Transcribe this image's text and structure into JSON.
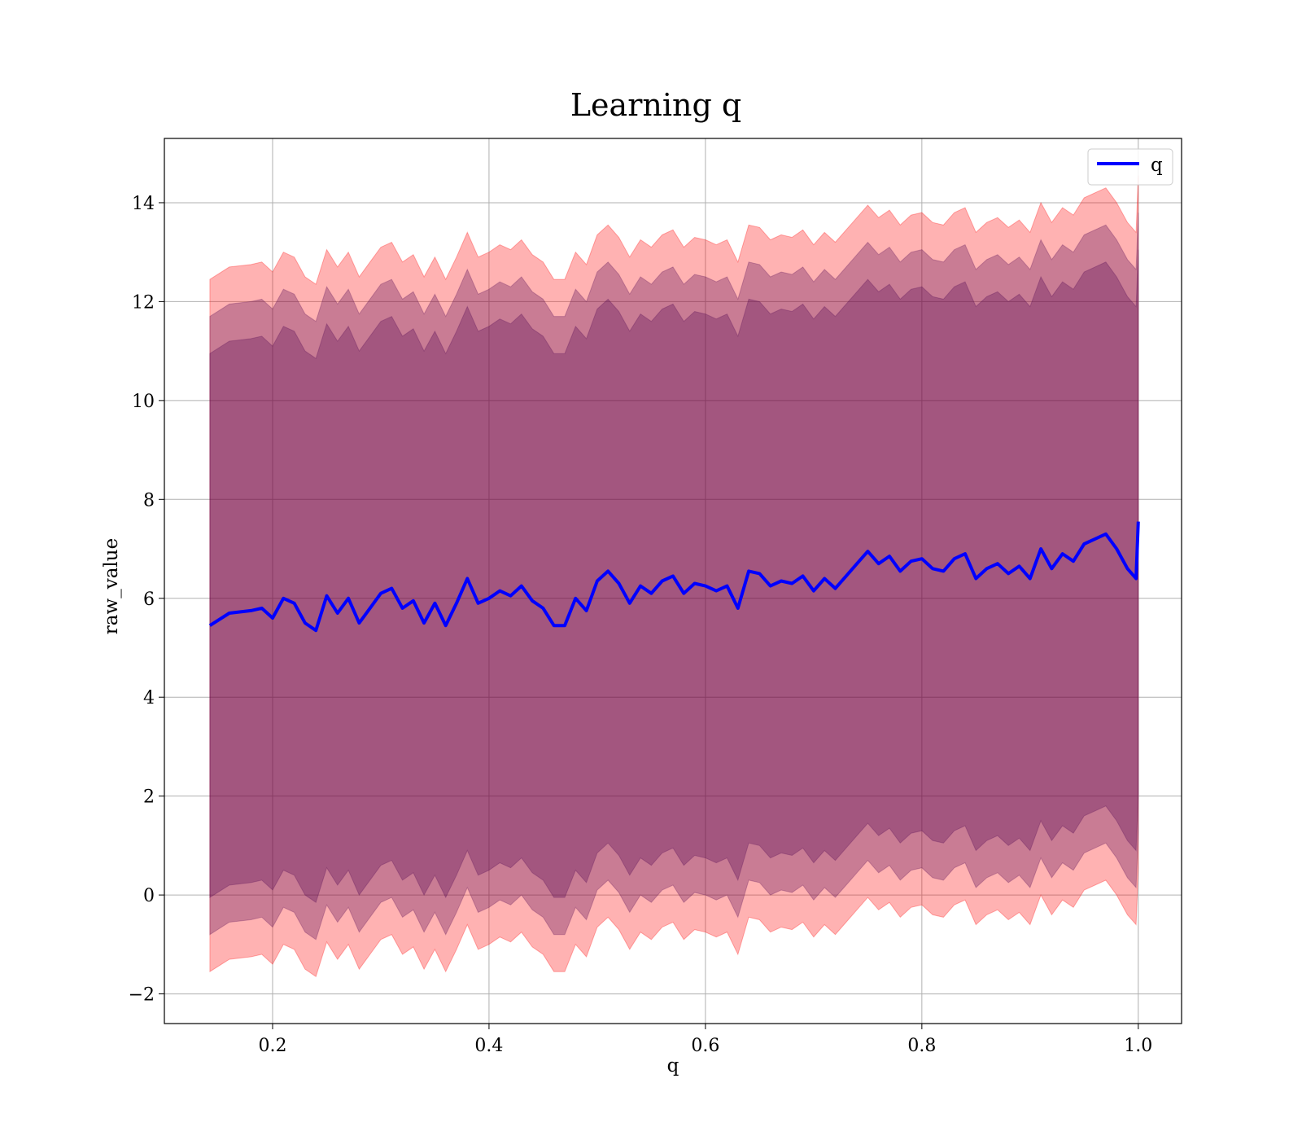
{
  "chart_data": {
    "type": "line",
    "title": "Learning q",
    "xlabel": "q",
    "ylabel": "raw_value",
    "xlim": [
      0.1,
      1.04
    ],
    "ylim": [
      -2.6,
      15.3
    ],
    "xticks": [
      0.2,
      0.4,
      0.6,
      0.8,
      1.0
    ],
    "xtick_labels": [
      "0.2",
      "0.4",
      "0.6",
      "0.8",
      "1.0"
    ],
    "yticks": [
      -2,
      0,
      2,
      4,
      6,
      8,
      10,
      12,
      14
    ],
    "ytick_labels": [
      "−2",
      "0",
      "2",
      "4",
      "6",
      "8",
      "10",
      "12",
      "14"
    ],
    "grid": true,
    "legend": {
      "position": "top-right",
      "entries": [
        "q"
      ]
    },
    "colors": {
      "line": "#0000ff",
      "band": "#ff0000",
      "band_inner": "#4b0050"
    },
    "series": [
      {
        "name": "q",
        "x": [
          0.142,
          0.16,
          0.18,
          0.19,
          0.2,
          0.21,
          0.22,
          0.23,
          0.24,
          0.25,
          0.26,
          0.27,
          0.28,
          0.29,
          0.3,
          0.31,
          0.32,
          0.33,
          0.34,
          0.35,
          0.36,
          0.37,
          0.38,
          0.39,
          0.4,
          0.41,
          0.42,
          0.43,
          0.44,
          0.45,
          0.46,
          0.47,
          0.48,
          0.49,
          0.5,
          0.51,
          0.52,
          0.53,
          0.54,
          0.55,
          0.56,
          0.57,
          0.58,
          0.59,
          0.6,
          0.61,
          0.62,
          0.63,
          0.64,
          0.65,
          0.66,
          0.67,
          0.68,
          0.69,
          0.7,
          0.71,
          0.72,
          0.73,
          0.74,
          0.75,
          0.76,
          0.77,
          0.78,
          0.79,
          0.8,
          0.81,
          0.82,
          0.83,
          0.84,
          0.85,
          0.86,
          0.87,
          0.88,
          0.89,
          0.9,
          0.91,
          0.92,
          0.93,
          0.94,
          0.95,
          0.96,
          0.97,
          0.98,
          0.99,
          0.998,
          1.0
        ],
        "y": [
          5.45,
          5.7,
          5.75,
          5.8,
          5.6,
          6.0,
          5.9,
          5.5,
          5.35,
          6.05,
          5.7,
          6.0,
          5.5,
          5.8,
          6.1,
          6.2,
          5.8,
          5.95,
          5.5,
          5.9,
          5.45,
          5.9,
          6.4,
          5.9,
          6.0,
          6.15,
          6.05,
          6.25,
          5.95,
          5.8,
          5.45,
          5.45,
          6.0,
          5.75,
          6.35,
          6.55,
          6.3,
          5.9,
          6.25,
          6.1,
          6.35,
          6.45,
          6.1,
          6.3,
          6.25,
          6.15,
          6.25,
          5.8,
          6.55,
          6.5,
          6.25,
          6.35,
          6.3,
          6.45,
          6.15,
          6.4,
          6.2,
          6.45,
          6.7,
          6.95,
          6.7,
          6.85,
          6.55,
          6.75,
          6.8,
          6.6,
          6.55,
          6.8,
          6.9,
          6.4,
          6.6,
          6.7,
          6.5,
          6.65,
          6.4,
          7.0,
          6.6,
          6.9,
          6.75,
          7.1,
          7.2,
          7.3,
          7.0,
          6.6,
          6.4,
          7.55
        ],
        "band_outer_half_width": 7.0,
        "band_inner_half_width": 5.5
      }
    ]
  }
}
